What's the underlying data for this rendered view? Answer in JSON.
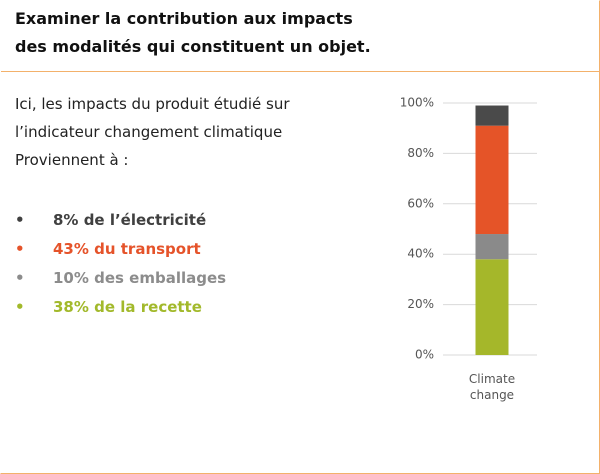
{
  "heading": [
    "Examiner la contribution aux impacts",
    "des modalités qui constituent un objet."
  ],
  "intro": [
    "Ici, les impacts du produit étudié sur",
    "l’indicateur changement climatique",
    "Proviennent à :"
  ],
  "bullets": [
    {
      "text": "8% de l’électricité",
      "color": "#404040"
    },
    {
      "text": "43% du transport",
      "color": "#e5532a"
    },
    {
      "text": "10% des emballages",
      "color": "#8c8c8c"
    },
    {
      "text": "38% de la recette",
      "color": "#a2b92b"
    }
  ],
  "chart_data": {
    "type": "stacked_bar",
    "categories": [
      "Climate change"
    ],
    "series": [
      {
        "color": "#a5b72a",
        "values": [
          38
        ]
      },
      {
        "color": "#8a8a8a",
        "values": [
          10
        ]
      },
      {
        "color": "#e55428",
        "values": [
          43
        ]
      },
      {
        "color": "#4a4a4a",
        "values": [
          8
        ]
      }
    ],
    "ylim": [
      0,
      100
    ],
    "yticks": [
      {
        "value": 0,
        "label": "0%"
      },
      {
        "value": 20,
        "label": "20%"
      },
      {
        "value": 40,
        "label": "40%"
      },
      {
        "value": 60,
        "label": "60%"
      },
      {
        "value": 80,
        "label": "80%"
      },
      {
        "value": 100,
        "label": "100%"
      }
    ],
    "grid": true
  }
}
